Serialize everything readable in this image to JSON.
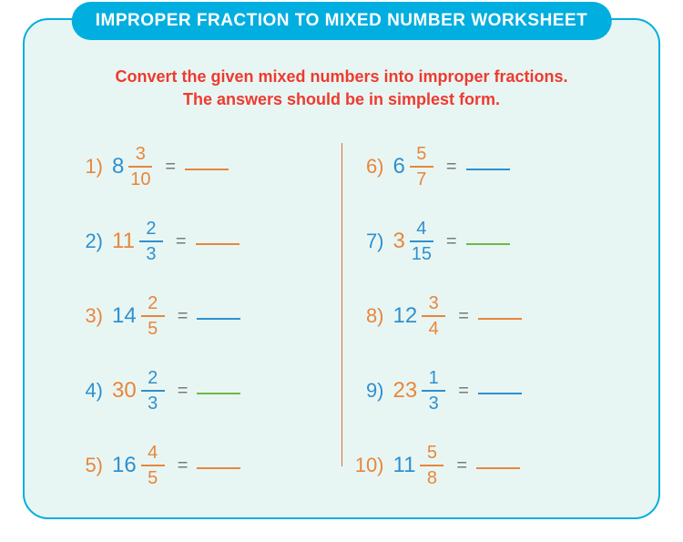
{
  "title": "IMPROPER FRACTION TO MIXED NUMBER WORKSHEET",
  "instructions_line1": "Convert the given mixed numbers into improper fractions.",
  "instructions_line2": "The answers should be in simplest form.",
  "colors": {
    "title_bg": "#00aee0",
    "title_text": "#ffffff",
    "card_border": "#00aee0",
    "card_bg": "#e8f6f3",
    "instructions": "#ee3a2f",
    "divider": "#e06a3a",
    "equals": "#7a7a7a",
    "orange": "#e8863c",
    "blue": "#2e90d0",
    "green": "#6fb848"
  },
  "equals": "=",
  "left": [
    {
      "n": "1)",
      "whole": "8",
      "num": "3",
      "den": "10",
      "num_color": "orange",
      "whole_color": "blue",
      "line_color": "orange"
    },
    {
      "n": "2)",
      "whole": "11",
      "num": "2",
      "den": "3",
      "num_color": "blue",
      "whole_color": "orange",
      "line_color": "orange"
    },
    {
      "n": "3)",
      "whole": "14",
      "num": "2",
      "den": "5",
      "num_color": "orange",
      "whole_color": "blue",
      "line_color": "blue"
    },
    {
      "n": "4)",
      "whole": "30",
      "num": "2",
      "den": "3",
      "num_color": "blue",
      "whole_color": "orange",
      "line_color": "green"
    },
    {
      "n": "5)",
      "whole": "16",
      "num": "4",
      "den": "5",
      "num_color": "orange",
      "whole_color": "blue",
      "line_color": "orange"
    }
  ],
  "right": [
    {
      "n": "6)",
      "whole": "6",
      "num": "5",
      "den": "7",
      "num_color": "orange",
      "whole_color": "blue",
      "line_color": "blue"
    },
    {
      "n": "7)",
      "whole": "3",
      "num": "4",
      "den": "15",
      "num_color": "blue",
      "whole_color": "orange",
      "line_color": "green"
    },
    {
      "n": "8)",
      "whole": "12",
      "num": "3",
      "den": "4",
      "num_color": "orange",
      "whole_color": "blue",
      "line_color": "orange"
    },
    {
      "n": "9)",
      "whole": "23",
      "num": "1",
      "den": "3",
      "num_color": "blue",
      "whole_color": "orange",
      "line_color": "blue"
    },
    {
      "n": "10)",
      "whole": "11",
      "num": "5",
      "den": "8",
      "num_color": "orange",
      "whole_color": "blue",
      "line_color": "orange"
    }
  ]
}
